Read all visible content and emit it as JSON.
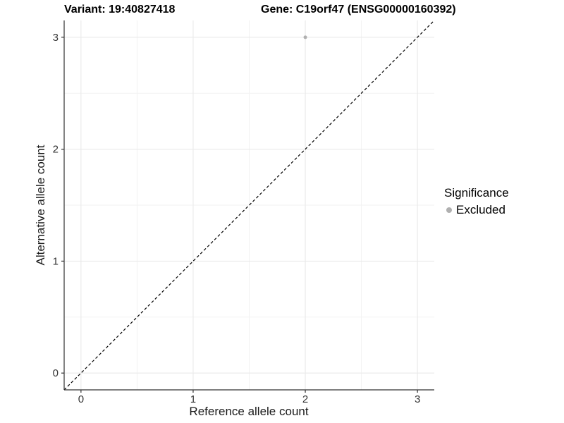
{
  "titles": {
    "variant": "Variant: 19:40827418",
    "gene": "Gene: C19orf47 (ENSG00000160392)"
  },
  "chart_data": {
    "type": "scatter",
    "title_variant": "Variant: 19:40827418",
    "title_gene": "Gene: C19orf47 (ENSG00000160392)",
    "xlabel": "Reference allele count",
    "ylabel": "Alternative allele count",
    "xlim": [
      -0.15,
      3.15
    ],
    "ylim": [
      -0.15,
      3.15
    ],
    "x_ticks": [
      0,
      1,
      2,
      3
    ],
    "y_ticks": [
      0,
      1,
      2,
      3
    ],
    "minor_ticks": [
      0.5,
      1.5,
      2.5
    ],
    "grid": true,
    "points": [
      {
        "x": 2,
        "y": 3,
        "series": "Excluded"
      }
    ],
    "reference_line": {
      "kind": "identity",
      "style": "dashed"
    },
    "legend": {
      "position": "right",
      "title": "Significance",
      "items": [
        {
          "label": "Excluded",
          "color": "#b0b0b0",
          "marker": "dot"
        }
      ]
    },
    "colors": {
      "point": "#b0b0b0",
      "grid_major": "#e8e8e8",
      "grid_minor": "#f2f2f2",
      "axis_line": "#333333",
      "tick_text": "#333333",
      "dashed_line": "#000000",
      "background": "#ffffff"
    }
  }
}
